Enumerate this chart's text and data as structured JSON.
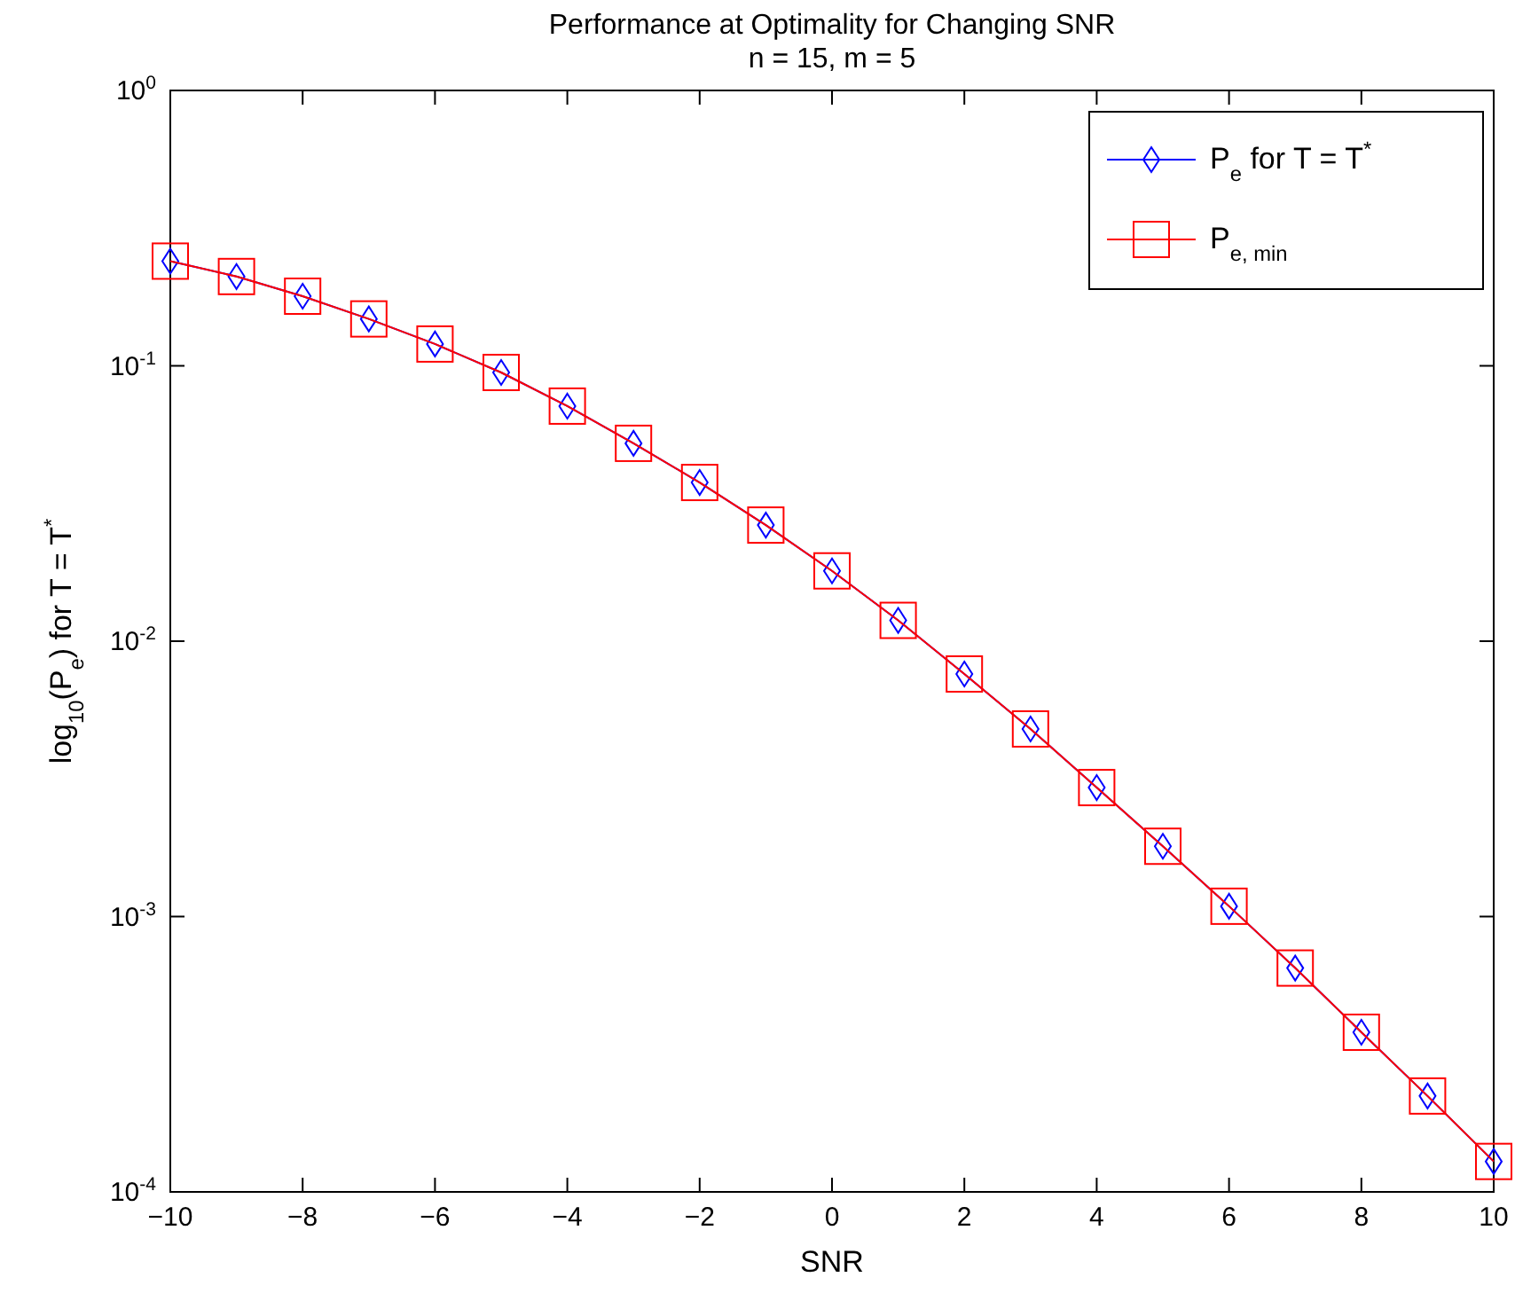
{
  "chart_data": {
    "type": "line",
    "title": "Performance at Optimality for Changing SNR",
    "subtitle": "n = 15, m = 5",
    "xlabel": "SNR",
    "ylabel": "log$_{10}$(P$_{e}$) for T = T$^{*}$",
    "x": [
      -10,
      -9,
      -8,
      -7,
      -6,
      -5,
      -4,
      -3,
      -2,
      -1,
      0,
      1,
      2,
      3,
      4,
      5,
      6,
      7,
      8,
      9,
      10
    ],
    "series": [
      {
        "name": "P$_{e}$ for T = T$^{*}$",
        "color": "#0000ff",
        "marker": "diamond",
        "values": [
          0.24,
          0.211,
          0.179,
          0.148,
          0.12,
          0.0946,
          0.0714,
          0.0523,
          0.0377,
          0.0264,
          0.018,
          0.0119,
          0.0076,
          0.0048,
          0.00294,
          0.0018,
          0.00109,
          0.00065,
          0.00038,
          0.000223,
          0.000129
        ]
      },
      {
        "name": "P$_{e, min}$",
        "color": "#ff0000",
        "marker": "square",
        "values": [
          0.24,
          0.211,
          0.179,
          0.148,
          0.12,
          0.0946,
          0.0714,
          0.0523,
          0.0377,
          0.0264,
          0.018,
          0.0119,
          0.0076,
          0.0048,
          0.00294,
          0.0018,
          0.00109,
          0.00065,
          0.00038,
          0.000223,
          0.000129
        ]
      }
    ],
    "xlim": [
      -10,
      10
    ],
    "xticks": [
      -10,
      -8,
      -6,
      -4,
      -2,
      0,
      2,
      4,
      6,
      8,
      10
    ],
    "ylim": [
      0.0001,
      1
    ],
    "yticks": [
      {
        "value": 0.0001,
        "label": "10$^{-4}$"
      },
      {
        "value": 0.001,
        "label": "10$^{-3}$"
      },
      {
        "value": 0.01,
        "label": "10$^{-2}$"
      },
      {
        "value": 0.1,
        "label": "10$^{-1}$"
      },
      {
        "value": 1,
        "label": "10$^{0}$"
      }
    ],
    "log": true,
    "legend": "top right",
    "line_style": "solid"
  }
}
